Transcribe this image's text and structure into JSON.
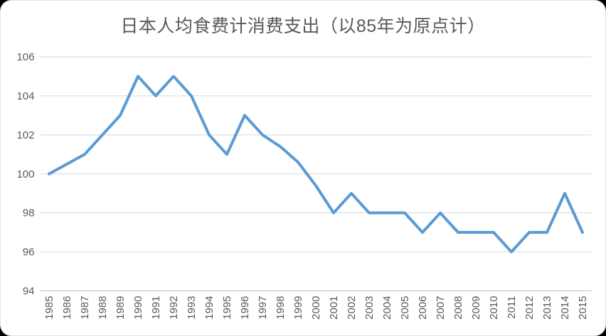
{
  "chart_data": {
    "type": "line",
    "title": "日本人均食费计消费支出（以85年为原点计）",
    "categories": [
      "1985",
      "1986",
      "1987",
      "1988",
      "1989",
      "1990",
      "1991",
      "1992",
      "1993",
      "1994",
      "1995",
      "1996",
      "1997",
      "1998",
      "1999",
      "2000",
      "2001",
      "2002",
      "2003",
      "2004",
      "2005",
      "2006",
      "2007",
      "2008",
      "2009",
      "2010",
      "2011",
      "2012",
      "2013",
      "2014",
      "2015"
    ],
    "values": [
      100,
      100.5,
      101,
      102,
      103,
      105,
      104,
      105,
      104,
      102,
      101,
      103,
      102,
      101.4,
      100.6,
      99.4,
      98,
      99,
      98,
      98,
      98,
      97,
      98,
      97,
      97,
      97,
      96,
      97,
      97,
      99,
      97
    ],
    "xlabel": "",
    "ylabel": "",
    "ylim": [
      94,
      106
    ],
    "ytick_step": 2,
    "ytick_labels": [
      "94",
      "96",
      "98",
      "100",
      "102",
      "104",
      "106"
    ],
    "grid": true,
    "legend": "none",
    "colors": {
      "series": "#5B9BD5",
      "gridline": "#D9D9D9",
      "axis_line": "#BFBFBF",
      "text": "#595959",
      "background": "#FFFFFF"
    }
  }
}
